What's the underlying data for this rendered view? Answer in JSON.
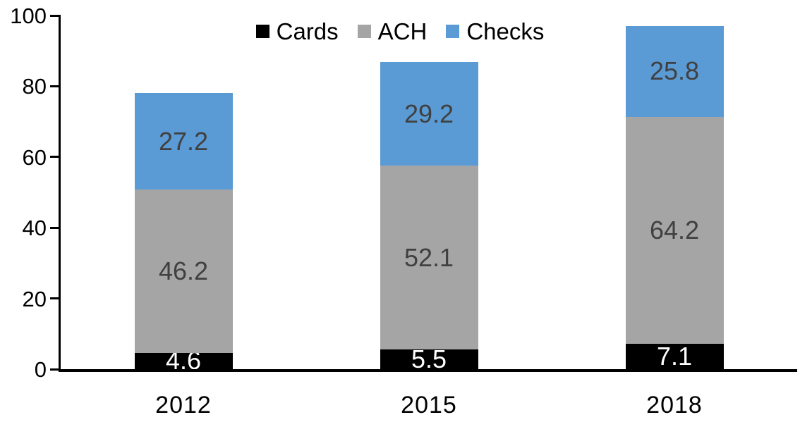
{
  "chart_data": {
    "type": "bar",
    "stacked": true,
    "title": "",
    "categories": [
      "2012",
      "2015",
      "2018"
    ],
    "series": [
      {
        "name": "Cards",
        "color": "#000000",
        "label_color": "#FFFFFF",
        "values": [
          4.6,
          5.5,
          7.1
        ]
      },
      {
        "name": "ACH",
        "color": "#A5A5A5",
        "label_color": "#404040",
        "values": [
          46.2,
          52.1,
          64.2
        ]
      },
      {
        "name": "Checks",
        "color": "#5B9BD5",
        "label_color": "#404040",
        "values": [
          27.2,
          29.2,
          25.8
        ]
      }
    ],
    "totals": [
      78.0,
      86.8,
      97.1
    ],
    "ylim": [
      0,
      100
    ],
    "yticks": [
      0,
      20,
      40,
      60,
      80,
      100
    ],
    "grid": false,
    "legend_position": "top-center",
    "axis_color": "#000000",
    "background_color": "#FFFFFF"
  }
}
